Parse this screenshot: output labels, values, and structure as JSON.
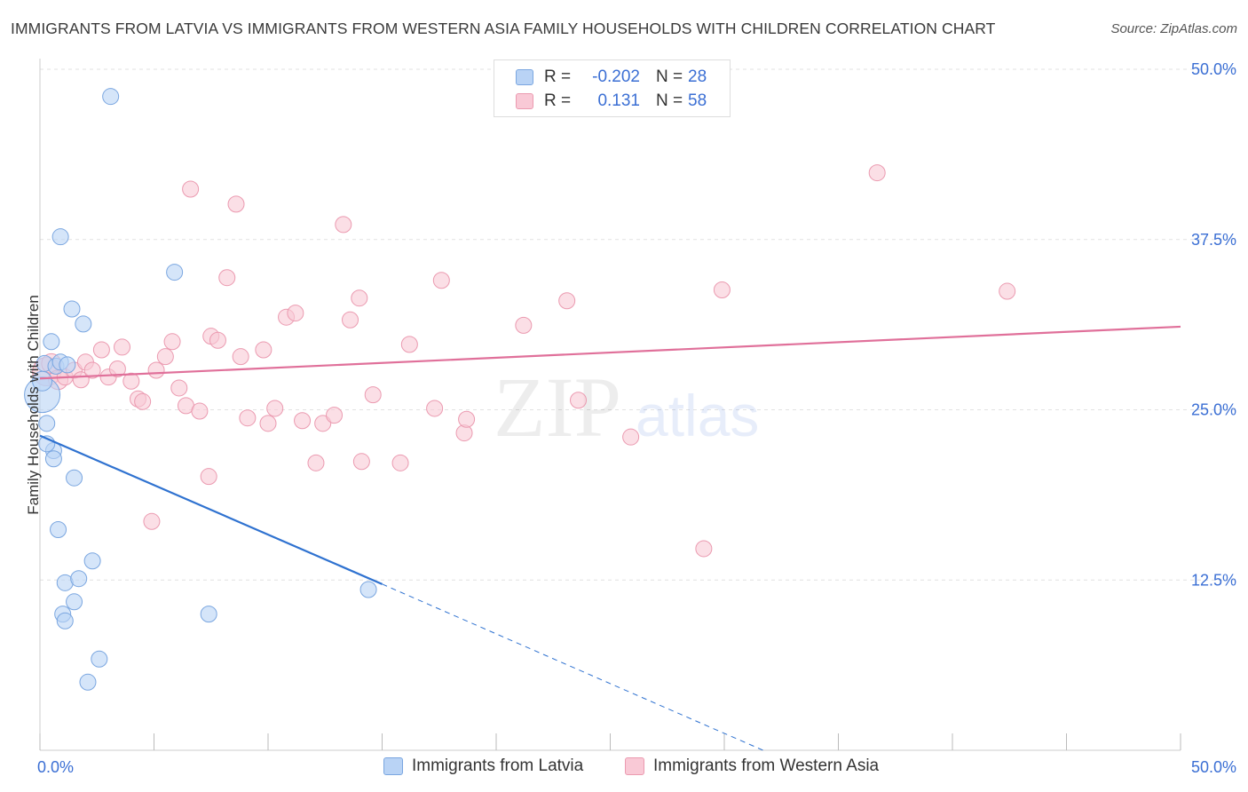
{
  "title": "IMMIGRANTS FROM LATVIA VS IMMIGRANTS FROM WESTERN ASIA FAMILY HOUSEHOLDS WITH CHILDREN CORRELATION CHART",
  "source": "Source: ZipAtlas.com",
  "watermark": {
    "zip": "ZIP",
    "atlas": "atlas"
  },
  "legend": {
    "rows": [
      {
        "r_label": "R =",
        "r_value": "-0.202",
        "n_label": "N =",
        "n_value": "28"
      },
      {
        "r_label": "R =",
        "r_value": "0.131",
        "n_label": "N =",
        "n_value": "58"
      }
    ]
  },
  "bottom_legend": [
    "Immigrants from Latvia",
    "Immigrants from Western Asia"
  ],
  "colors": {
    "latvia_fill": "#b9d3f5",
    "latvia_stroke": "#7aa6e0",
    "latvia_line": "#2f72d0",
    "wasia_fill": "#f9c9d6",
    "wasia_stroke": "#eb9ab0",
    "wasia_line": "#e0709a",
    "grid": "#e2e2e2",
    "axis_text": "#3b6fd4"
  },
  "chart_data": {
    "type": "scatter",
    "title": "IMMIGRANTS FROM LATVIA VS IMMIGRANTS FROM WESTERN ASIA FAMILY HOUSEHOLDS WITH CHILDREN CORRELATION CHART",
    "xlabel": "",
    "ylabel": "Family Households with Children",
    "xlim": [
      0,
      50
    ],
    "ylim": [
      0,
      50
    ],
    "x_tick_labels": [
      "0.0%",
      "50.0%"
    ],
    "y_ticks": [
      12.5,
      25.0,
      37.5,
      50.0
    ],
    "y_tick_labels": [
      "12.5%",
      "25.0%",
      "37.5%",
      "50.0%"
    ],
    "series": [
      {
        "name": "Immigrants from Latvia",
        "r": -0.202,
        "n": 28,
        "trend": {
          "x": [
            0,
            15
          ],
          "y": [
            23.1,
            12.2
          ],
          "dashed_to": [
            31.7,
            0
          ]
        },
        "points": [
          [
            0.1,
            26.1,
            20
          ],
          [
            0.1,
            27.1,
            11
          ],
          [
            0.2,
            28.4,
            9
          ],
          [
            0.3,
            24.0,
            9
          ],
          [
            0.5,
            30.0,
            9
          ],
          [
            0.6,
            22.0,
            9
          ],
          [
            0.6,
            21.4,
            9
          ],
          [
            0.7,
            28.2,
            9
          ],
          [
            0.8,
            16.2,
            9
          ],
          [
            0.9,
            28.5,
            9
          ],
          [
            0.9,
            37.7,
            9
          ],
          [
            1.0,
            10.0,
            9
          ],
          [
            1.1,
            12.3,
            9
          ],
          [
            1.1,
            9.5,
            9
          ],
          [
            1.2,
            28.3,
            9
          ],
          [
            1.4,
            32.4,
            9
          ],
          [
            1.5,
            20.0,
            9
          ],
          [
            1.5,
            10.9,
            9
          ],
          [
            1.7,
            12.6,
            9
          ],
          [
            1.9,
            31.3,
            9
          ],
          [
            2.1,
            5.0,
            9
          ],
          [
            2.3,
            13.9,
            9
          ],
          [
            2.6,
            6.7,
            9
          ],
          [
            3.1,
            48.0,
            9
          ],
          [
            5.9,
            35.1,
            9
          ],
          [
            7.4,
            10.0,
            9
          ],
          [
            14.4,
            11.8,
            9
          ],
          [
            0.3,
            22.5,
            9
          ]
        ]
      },
      {
        "name": "Immigrants from Western Asia",
        "r": 0.131,
        "n": 58,
        "trend": {
          "x": [
            0,
            50
          ],
          "y": [
            27.3,
            31.1
          ]
        },
        "points": [
          [
            0.3,
            27.8,
            16
          ],
          [
            0.5,
            28.4,
            11
          ],
          [
            0.8,
            27.2,
            11
          ],
          [
            1.1,
            27.4,
            9
          ],
          [
            1.5,
            27.9,
            9
          ],
          [
            1.8,
            27.2,
            9
          ],
          [
            2.0,
            28.5,
            9
          ],
          [
            2.3,
            27.9,
            9
          ],
          [
            2.7,
            29.4,
            9
          ],
          [
            3.0,
            27.4,
            9
          ],
          [
            3.4,
            28.0,
            9
          ],
          [
            3.6,
            29.6,
            9
          ],
          [
            4.0,
            27.1,
            9
          ],
          [
            4.3,
            25.8,
            9
          ],
          [
            4.5,
            25.6,
            9
          ],
          [
            4.9,
            16.8,
            9
          ],
          [
            5.1,
            27.9,
            9
          ],
          [
            5.5,
            28.9,
            9
          ],
          [
            5.8,
            30.0,
            9
          ],
          [
            6.1,
            26.6,
            9
          ],
          [
            6.4,
            25.3,
            9
          ],
          [
            6.6,
            41.2,
            9
          ],
          [
            7.0,
            24.9,
            9
          ],
          [
            7.4,
            20.1,
            9
          ],
          [
            7.5,
            30.4,
            9
          ],
          [
            7.8,
            30.1,
            9
          ],
          [
            8.2,
            34.7,
            9
          ],
          [
            8.6,
            40.1,
            9
          ],
          [
            8.8,
            28.9,
            9
          ],
          [
            9.1,
            24.4,
            9
          ],
          [
            9.8,
            29.4,
            9
          ],
          [
            10.0,
            24.0,
            9
          ],
          [
            10.3,
            25.1,
            9
          ],
          [
            10.8,
            31.8,
            9
          ],
          [
            11.2,
            32.1,
            9
          ],
          [
            11.5,
            24.2,
            9
          ],
          [
            12.1,
            21.1,
            9
          ],
          [
            12.4,
            24.0,
            9
          ],
          [
            12.9,
            24.6,
            9
          ],
          [
            13.3,
            38.6,
            9
          ],
          [
            13.6,
            31.6,
            9
          ],
          [
            14.0,
            33.2,
            9
          ],
          [
            14.1,
            21.2,
            9
          ],
          [
            14.6,
            26.1,
            9
          ],
          [
            15.8,
            21.1,
            9
          ],
          [
            16.2,
            29.8,
            9
          ],
          [
            17.3,
            25.1,
            9
          ],
          [
            17.6,
            34.5,
            9
          ],
          [
            18.6,
            23.3,
            9
          ],
          [
            18.7,
            24.3,
            9
          ],
          [
            21.2,
            31.2,
            9
          ],
          [
            23.1,
            33.0,
            9
          ],
          [
            23.6,
            25.7,
            9
          ],
          [
            25.9,
            23.0,
            9
          ],
          [
            29.1,
            14.8,
            9
          ],
          [
            29.9,
            33.8,
            9
          ],
          [
            36.7,
            42.4,
            9
          ],
          [
            42.4,
            33.7,
            9
          ]
        ]
      }
    ]
  }
}
